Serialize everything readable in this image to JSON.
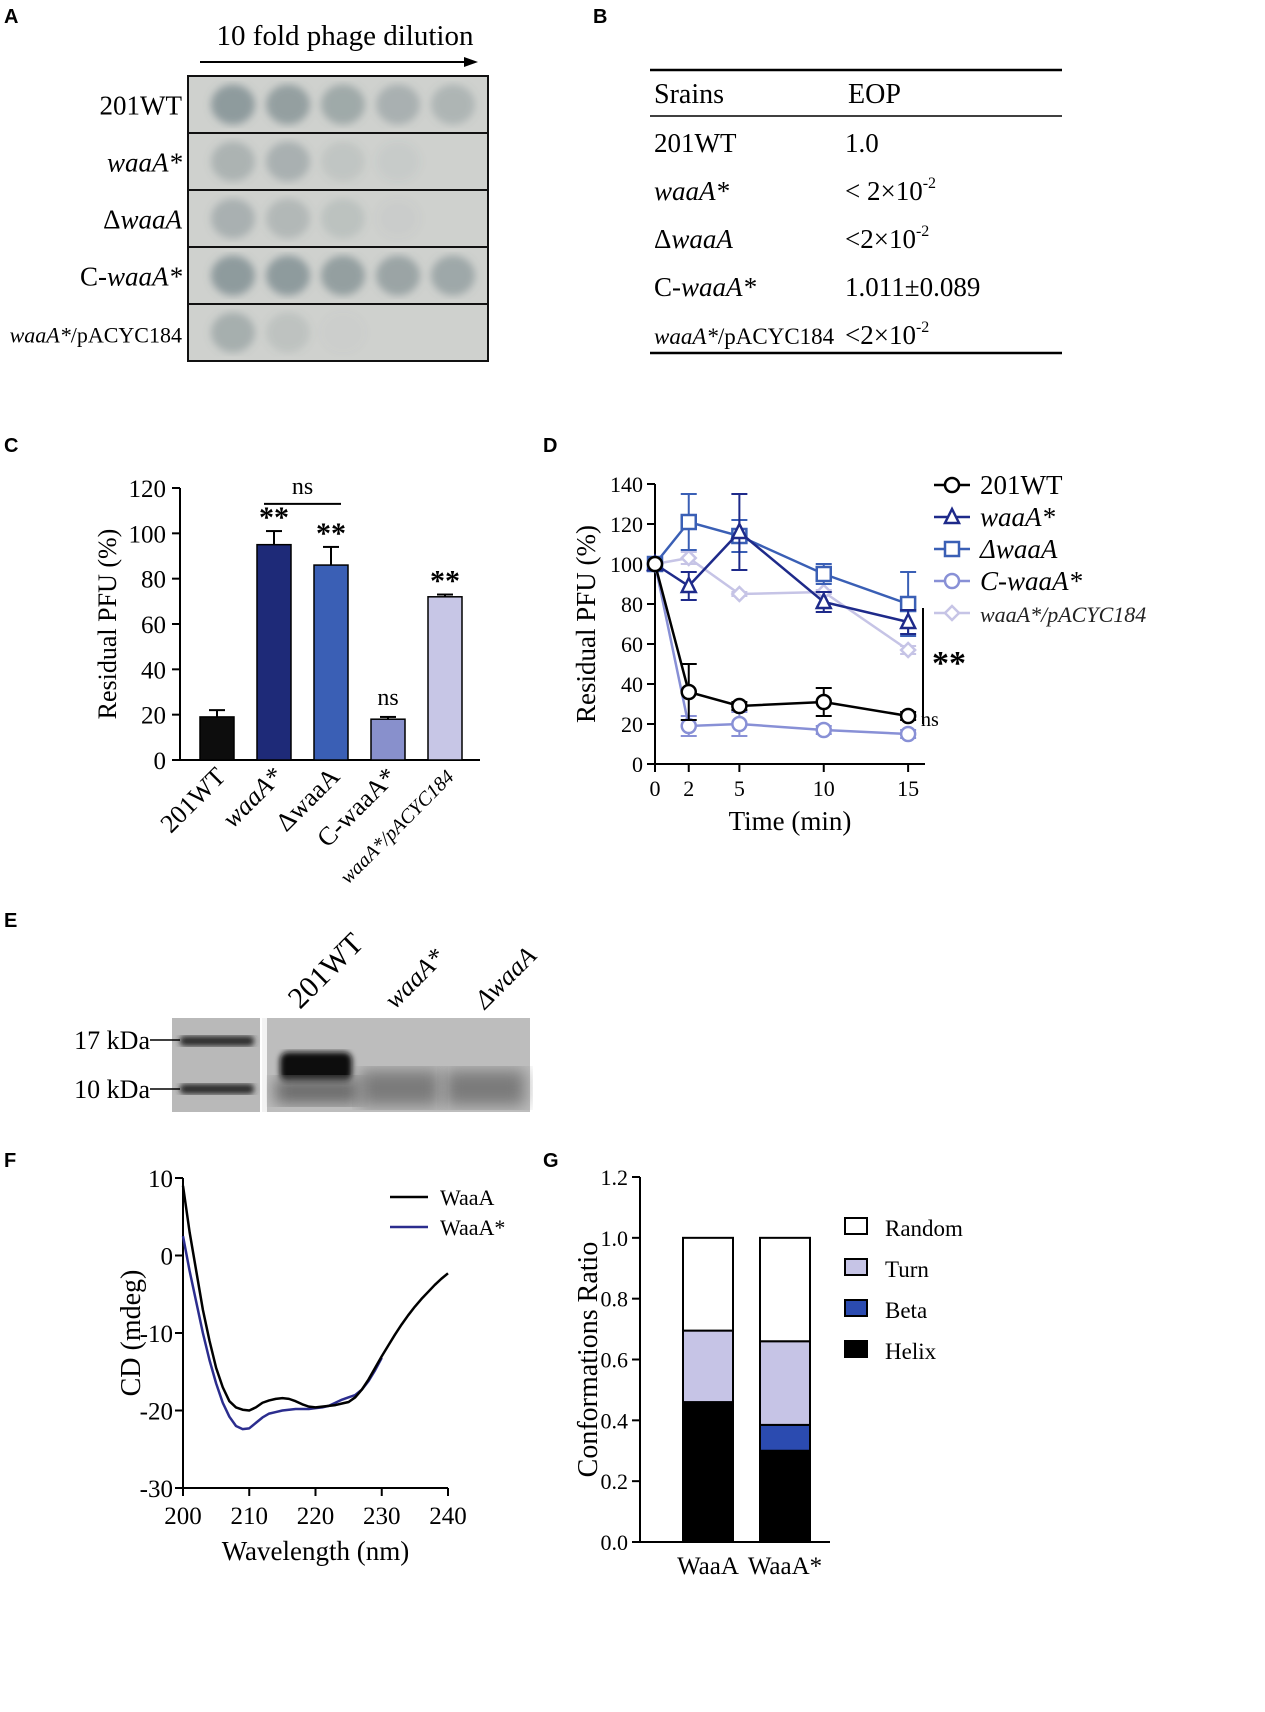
{
  "panels": {
    "a": "A",
    "b": "B",
    "c": "C",
    "d": "D",
    "e": "E",
    "f": "F",
    "g": "G"
  },
  "panel_a": {
    "header": "10 fold phage dilution",
    "rows": [
      {
        "pre": "201WT",
        "ital": "",
        "post": "",
        "spots": [
          0.55,
          0.5,
          0.4,
          0.32,
          0.28
        ]
      },
      {
        "pre": "",
        "ital": "waaA*",
        "post": "",
        "spots": [
          0.3,
          0.32,
          0.12,
          0.06,
          0
        ]
      },
      {
        "pre": "Δ",
        "ital": "waaA",
        "post": "",
        "spots": [
          0.32,
          0.25,
          0.16,
          0.04,
          0
        ]
      },
      {
        "pre": "C-",
        "ital": "waaA*",
        "post": "",
        "spots": [
          0.55,
          0.55,
          0.5,
          0.45,
          0.42
        ]
      },
      {
        "pre": "",
        "ital": "waaA*",
        "post": "/pACYC184",
        "spots": [
          0.35,
          0.15,
          0.03,
          0,
          0
        ]
      }
    ]
  },
  "panel_b": {
    "col1": "Srains",
    "col2": "EOP",
    "rows": [
      {
        "pre": "201WT",
        "ital": "",
        "post": "",
        "eop": "1.0",
        "exp": ""
      },
      {
        "pre": "",
        "ital": "waaA*",
        "post": "",
        "eop": "< 2×10",
        "exp": "-2"
      },
      {
        "pre": "Δ",
        "ital": "waaA",
        "post": "",
        "eop": "<2×10",
        "exp": "-2"
      },
      {
        "pre": "C-",
        "ital": "waaA*",
        "post": "",
        "eop": "1.011±0.089",
        "exp": ""
      },
      {
        "pre": "",
        "ital": "waaA*",
        "post": "/pACYC184",
        "eop": "<2×10",
        "exp": "-2"
      }
    ]
  },
  "chart_data": [
    {
      "panel": "C",
      "type": "bar",
      "ylabel": "Residual PFU (%)",
      "ylim": [
        0,
        120
      ],
      "yticks": [
        0,
        20,
        40,
        60,
        80,
        100,
        120
      ],
      "categories": [
        "201WT",
        "waaA*",
        "ΔwaaA",
        "C-waaA*",
        "waaA*/pACYC184"
      ],
      "values": [
        19,
        95,
        86,
        18,
        72
      ],
      "errors": [
        3,
        6,
        8,
        1,
        1
      ],
      "colors": [
        "#0d0d0d",
        "#1e2a78",
        "#3a5fb5",
        "#8890cc",
        "#c7c6e6"
      ],
      "sig": [
        "",
        "**",
        "**",
        "ns",
        "**"
      ],
      "bracket": {
        "from": 1,
        "to": 2,
        "label": "ns"
      }
    },
    {
      "panel": "D",
      "type": "line",
      "xlabel": "Time (min)",
      "ylabel": "Residual PFU (%)",
      "x": [
        0,
        2,
        5,
        10,
        15
      ],
      "xticks": [
        0,
        2,
        5,
        10,
        15
      ],
      "xlim": [
        0,
        16
      ],
      "ylim": [
        0,
        140
      ],
      "yticks": [
        0,
        20,
        40,
        60,
        80,
        100,
        120,
        140
      ],
      "series": [
        {
          "name": "201WT",
          "marker": "circle",
          "color": "#000000",
          "values": [
            100,
            36,
            29,
            31,
            24
          ],
          "errors": [
            0,
            14,
            2,
            7,
            2
          ]
        },
        {
          "name": "waaA*",
          "marker": "triangle",
          "color": "#1e2a8a",
          "values": [
            100,
            89,
            116,
            81,
            71
          ],
          "errors": [
            0,
            7,
            19,
            5,
            6
          ]
        },
        {
          "name": "ΔwaaA",
          "marker": "square",
          "color": "#3a5fb5",
          "values": [
            100,
            121,
            114,
            95,
            80
          ],
          "errors": [
            0,
            14,
            8,
            5,
            16
          ]
        },
        {
          "name": "C-waaA*",
          "marker": "circle",
          "color": "#8890d6",
          "values": [
            100,
            19,
            20,
            17,
            15
          ],
          "errors": [
            0,
            5,
            6,
            2,
            2
          ]
        },
        {
          "name": "waaA*/pACYC184",
          "marker": "diamond",
          "color": "#c6c4e6",
          "values": [
            100,
            103,
            85,
            86,
            57
          ],
          "errors": [
            0,
            3,
            1,
            1,
            2
          ]
        }
      ],
      "sig_right": "**",
      "sig_ns": "ns"
    },
    {
      "panel": "F",
      "type": "line",
      "xlabel": "Wavelength (nm)",
      "ylabel": "CD (mdeg)",
      "xlim": [
        200,
        240
      ],
      "xticks": [
        200,
        210,
        220,
        230,
        240
      ],
      "ylim": [
        -30,
        10
      ],
      "yticks": [
        -30,
        -20,
        -10,
        0,
        10
      ],
      "series": [
        {
          "name": "WaaA",
          "color": "#000000",
          "x": [
            200,
            201,
            202,
            203,
            204,
            205,
            206,
            207,
            208,
            209,
            210,
            211,
            212,
            213,
            214,
            215,
            216,
            217,
            218,
            219,
            220,
            221,
            222,
            223,
            224,
            225,
            226,
            227,
            228,
            229,
            230,
            231,
            232,
            233,
            234,
            235,
            236,
            237,
            238,
            239,
            240
          ],
          "values": [
            9,
            3,
            -2,
            -7,
            -11,
            -14.5,
            -17,
            -18.8,
            -19.6,
            -19.9,
            -20,
            -19.6,
            -19,
            -18.7,
            -18.5,
            -18.4,
            -18.5,
            -18.8,
            -19.2,
            -19.5,
            -19.6,
            -19.5,
            -19.4,
            -19.3,
            -19.1,
            -18.9,
            -18.3,
            -17.3,
            -16,
            -14.5,
            -13,
            -11.6,
            -10.2,
            -8.9,
            -7.7,
            -6.6,
            -5.6,
            -4.7,
            -3.8,
            -3,
            -2.3
          ]
        },
        {
          "name": "WaaA*",
          "color": "#2b2d8e",
          "x": [
            200,
            201,
            202,
            203,
            204,
            205,
            206,
            207,
            208,
            209,
            210,
            211,
            212,
            213,
            214,
            215,
            216,
            217,
            218,
            219,
            220,
            221,
            222,
            223,
            224,
            225,
            226,
            227,
            228,
            229,
            230
          ],
          "values": [
            2.5,
            -2,
            -6,
            -10,
            -13.5,
            -16.5,
            -19,
            -20.8,
            -22,
            -22.4,
            -22.3,
            -21.6,
            -20.9,
            -20.4,
            -20.2,
            -20,
            -19.9,
            -19.8,
            -19.8,
            -19.8,
            -19.7,
            -19.6,
            -19.4,
            -19,
            -18.6,
            -18.3,
            -18,
            -17.3,
            -16.2,
            -14.8,
            -13.2
          ]
        }
      ]
    },
    {
      "panel": "G",
      "type": "bar",
      "stacked": true,
      "ylabel": "Conformations Ratio",
      "ylim": [
        0,
        1.2
      ],
      "yticks": [
        "0.0",
        "0.2",
        "0.4",
        "0.6",
        "0.8",
        "1.0",
        "1.2"
      ],
      "categories": [
        "WaaA",
        "WaaA*"
      ],
      "series": [
        {
          "name": "Helix",
          "color": "#000000",
          "values": [
            0.46,
            0.3
          ]
        },
        {
          "name": "Beta",
          "color": "#2b4bb0",
          "values": [
            0,
            0.085
          ]
        },
        {
          "name": "Turn",
          "color": "#c6c4e6",
          "values": [
            0.235,
            0.275
          ]
        },
        {
          "name": "Random",
          "color": "#ffffff",
          "values": [
            0.305,
            0.34
          ]
        }
      ],
      "legend_order": [
        "Random",
        "Turn",
        "Beta",
        "Helix"
      ]
    }
  ],
  "panel_e": {
    "lanes": [
      "201WT",
      "waaA*",
      "ΔwaaA"
    ],
    "lane_italic": [
      false,
      true,
      true
    ],
    "markers": [
      "17 kDa",
      "10 kDa"
    ]
  }
}
